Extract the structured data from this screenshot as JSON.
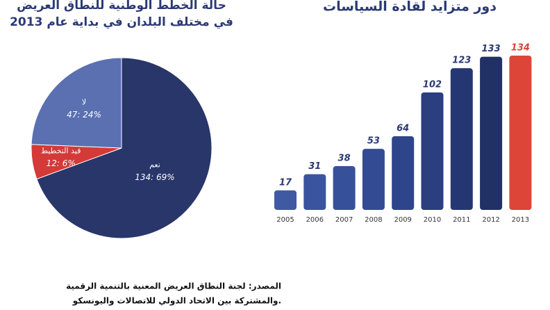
{
  "chart_data": [
    {
      "type": "pie",
      "title": "حالة الخطط الوطنية للنطاق العريض",
      "subtitle": "في مختلف البلدان في بداية عام 2013",
      "categories": [
        "نعم",
        "قيد التخطيط",
        "لا"
      ],
      "values": [
        134,
        12,
        47
      ],
      "value_labels": [
        "134: 69%",
        "12: 6%",
        "47: 24%"
      ],
      "colors": [
        "#28366a",
        "#d33a38",
        "#5a70b0"
      ]
    },
    {
      "type": "bar",
      "title": "دور متزايد لقادة السياسات",
      "categories": [
        "2005",
        "2006",
        "2007",
        "2008",
        "2009",
        "2010",
        "2011",
        "2012",
        "2013"
      ],
      "values": [
        17,
        31,
        38,
        53,
        64,
        102,
        123,
        133,
        134
      ],
      "colors": [
        "#3f59a3",
        "#3b54a0",
        "#37509a",
        "#334b93",
        "#2f458b",
        "#2a3e80",
        "#253773",
        "#213065",
        "#dc4538"
      ],
      "ylim": [
        0,
        140
      ]
    }
  ],
  "source": [
    "المصدر: لجنة النطاق العريض المعنية بالتنمية الرقمية",
    "والمشتركة بين الاتحاد الدولي للاتصالات واليونسكو."
  ]
}
